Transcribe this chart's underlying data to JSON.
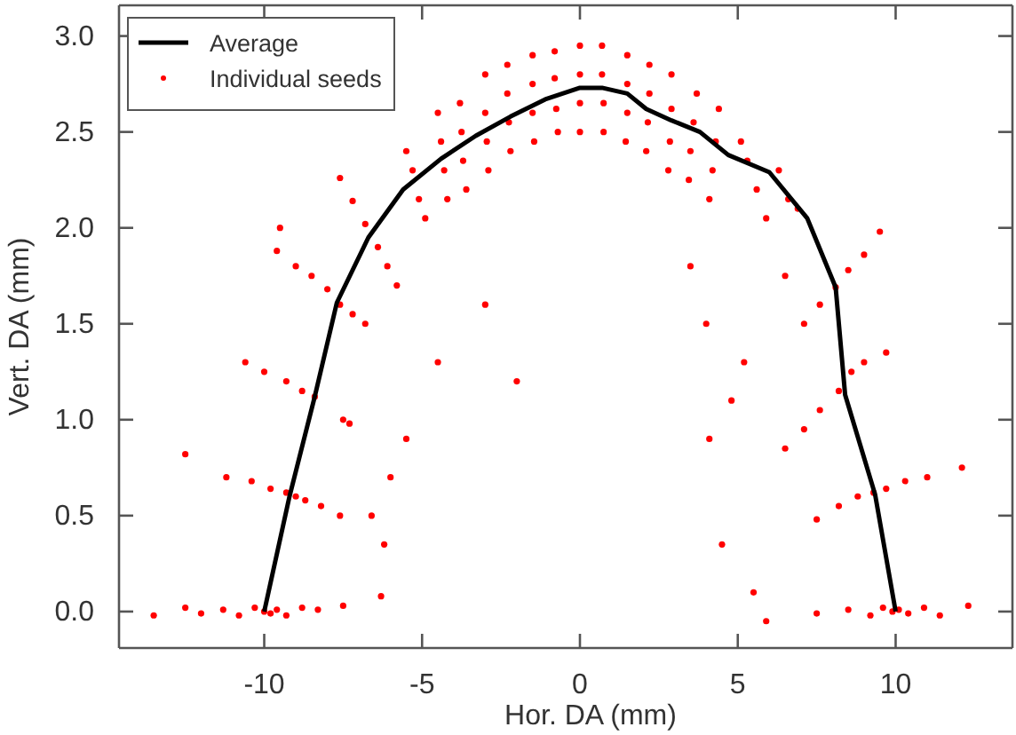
{
  "chart_data": {
    "type": "scatter",
    "xlabel": "Hor. DA (mm)",
    "ylabel": "Vert. DA (mm)",
    "xlim": [
      -14.6,
      13.7
    ],
    "ylim": [
      -0.19,
      3.16
    ],
    "xticks": [
      -10,
      -5,
      0,
      5,
      10
    ],
    "yticks": [
      {
        "value": 0,
        "label": "0.0"
      },
      {
        "value": 0.5,
        "label": "0.5"
      },
      {
        "value": 1,
        "label": "1.0"
      },
      {
        "value": 1.5,
        "label": "1.5"
      },
      {
        "value": 2,
        "label": "2.0"
      },
      {
        "value": 2.5,
        "label": "2.5"
      },
      {
        "value": 3,
        "label": "3.0"
      }
    ],
    "grid": false,
    "legend": "top left",
    "series": [
      {
        "name": "Average",
        "type": "line",
        "color": "#000000",
        "marker": "none",
        "line_style": "solid",
        "x": [
          -10,
          -9.2,
          -8.4,
          -7.7,
          -6.7,
          -5.6,
          -4.4,
          -3.3,
          -2.2,
          -1.1,
          0,
          0.7,
          1.5,
          2.1,
          2.9,
          3.8,
          4.7,
          6.0,
          7.2,
          8.1,
          8.4,
          9.35,
          10
        ],
        "values": [
          0,
          0.6,
          1.12,
          1.61,
          1.95,
          2.2,
          2.36,
          2.48,
          2.58,
          2.67,
          2.73,
          2.73,
          2.7,
          2.62,
          2.56,
          2.5,
          2.38,
          2.29,
          2.05,
          1.69,
          1.13,
          0.61,
          0
        ]
      },
      {
        "name": "Individual seeds",
        "color": "#ff0000",
        "marker": "circle",
        "x": [
          -13.5,
          -12.5,
          -12,
          -11.3,
          -10.8,
          -10.3,
          -10,
          -9.8,
          -9.6,
          -9.3,
          -8.8,
          -8.3,
          -7.5,
          -6.3,
          5.5,
          5.9,
          7.5,
          8.5,
          9.2,
          9.6,
          9.9,
          10.1,
          10.4,
          10.9,
          11.4,
          12.3,
          -11.2,
          -10.4,
          -9.8,
          -9.3,
          -9.0,
          -8.7,
          -8.2,
          -7.6,
          -6.6,
          -6.2,
          7.5,
          8.2,
          8.8,
          9.3,
          9.7,
          10.3,
          11.0,
          12.1,
          -10.6,
          -10.0,
          -9.3,
          -8.8,
          -8.4,
          -7.5,
          -7.3,
          6.5,
          7.1,
          7.6,
          8.2,
          8.6,
          9.0,
          9.7,
          -9.6,
          -9.0,
          -8.5,
          -8.0,
          -7.6,
          -7.2,
          -6.8,
          8.1,
          8.5,
          9.0,
          9.5,
          7.6,
          7.1,
          -7.6,
          -7.2,
          -6.8,
          -6.4,
          -6.1,
          -5.8,
          -9.5,
          -12.5,
          -6.0,
          -5.5,
          -4.5,
          -3.0,
          -2.0,
          3.5,
          4.0,
          4.8,
          4.5,
          4.1,
          5.2,
          6.5,
          6.9,
          -5.5,
          -5.3,
          -5.1,
          -4.9,
          -4.5,
          -4.4,
          -4.3,
          -4.2,
          -3.8,
          -3.75,
          -3.7,
          -3.6,
          -3.0,
          -3.0,
          -2.95,
          -2.9,
          -2.3,
          -2.3,
          -2.25,
          -2.2,
          -1.5,
          -1.5,
          -1.5,
          -1.45,
          -0.8,
          -0.8,
          -0.75,
          -0.7,
          0,
          0,
          0,
          0,
          0.7,
          0.7,
          0.75,
          0.75,
          1.5,
          1.5,
          1.5,
          1.45,
          2.2,
          2.2,
          2.15,
          2.1,
          2.9,
          2.9,
          2.85,
          2.8,
          3.7,
          3.6,
          3.5,
          3.45,
          4.4,
          4.3,
          4.2,
          4.1,
          5.1,
          5.3,
          5.6,
          5.9,
          6.3,
          6.6
        ],
        "values": [
          -0.02,
          0.02,
          -0.01,
          0.01,
          -0.02,
          0.02,
          0,
          -0.01,
          0.01,
          -0.02,
          0.02,
          0.01,
          0.03,
          0.08,
          0.1,
          -0.05,
          -0.01,
          0.01,
          -0.02,
          0.02,
          0,
          0.01,
          -0.01,
          0.02,
          -0.02,
          0.03,
          0.7,
          0.68,
          0.64,
          0.62,
          0.6,
          0.58,
          0.55,
          0.5,
          0.5,
          0.35,
          0.48,
          0.55,
          0.6,
          0.62,
          0.64,
          0.68,
          0.7,
          0.75,
          1.3,
          1.25,
          1.2,
          1.15,
          1.12,
          1.0,
          0.98,
          0.85,
          0.95,
          1.05,
          1.15,
          1.25,
          1.3,
          1.35,
          1.88,
          1.8,
          1.75,
          1.68,
          1.6,
          1.55,
          1.5,
          1.69,
          1.78,
          1.86,
          1.98,
          1.6,
          1.5,
          2.26,
          2.14,
          2.02,
          1.9,
          1.8,
          1.7,
          2.0,
          0.82,
          0.7,
          0.9,
          1.3,
          1.6,
          1.2,
          1.8,
          1.5,
          1.1,
          0.35,
          0.9,
          1.3,
          1.75,
          2.1,
          2.4,
          2.3,
          2.15,
          2.05,
          2.6,
          2.45,
          2.3,
          2.15,
          2.65,
          2.5,
          2.35,
          2.2,
          2.8,
          2.6,
          2.45,
          2.3,
          2.85,
          2.7,
          2.55,
          2.4,
          2.9,
          2.75,
          2.6,
          2.45,
          2.92,
          2.78,
          2.62,
          2.5,
          2.95,
          2.8,
          2.65,
          2.5,
          2.95,
          2.8,
          2.65,
          2.5,
          2.9,
          2.75,
          2.6,
          2.45,
          2.85,
          2.7,
          2.55,
          2.4,
          2.8,
          2.62,
          2.45,
          2.3,
          2.7,
          2.55,
          2.4,
          2.25,
          2.62,
          2.45,
          2.3,
          2.15,
          2.45,
          2.35,
          2.2,
          2.05,
          2.3,
          2.15
        ]
      }
    ]
  }
}
